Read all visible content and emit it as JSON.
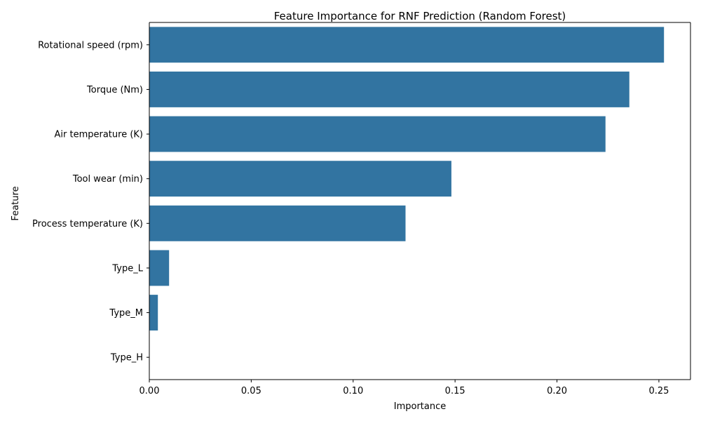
{
  "chart_data": {
    "type": "bar",
    "orientation": "horizontal",
    "title": "Feature Importance for RNF Prediction (Random Forest)",
    "xlabel": "Importance",
    "ylabel": "Feature",
    "categories": [
      "Rotational speed (rpm)",
      "Torque (Nm)",
      "Air temperature (K)",
      "Tool wear (min)",
      "Process temperature (K)",
      "Type_L",
      "Type_M",
      "Type_H"
    ],
    "values": [
      0.2525,
      0.2355,
      0.2238,
      0.1482,
      0.1257,
      0.0097,
      0.0042,
      0.0
    ],
    "xlim": [
      0,
      0.2655
    ],
    "xticks": [
      0.0,
      0.05,
      0.1,
      0.15,
      0.2,
      0.25
    ],
    "xtick_labels": [
      "0.00",
      "0.05",
      "0.10",
      "0.15",
      "0.20",
      "0.25"
    ],
    "grid": false,
    "bar_color": "#3274a1"
  }
}
